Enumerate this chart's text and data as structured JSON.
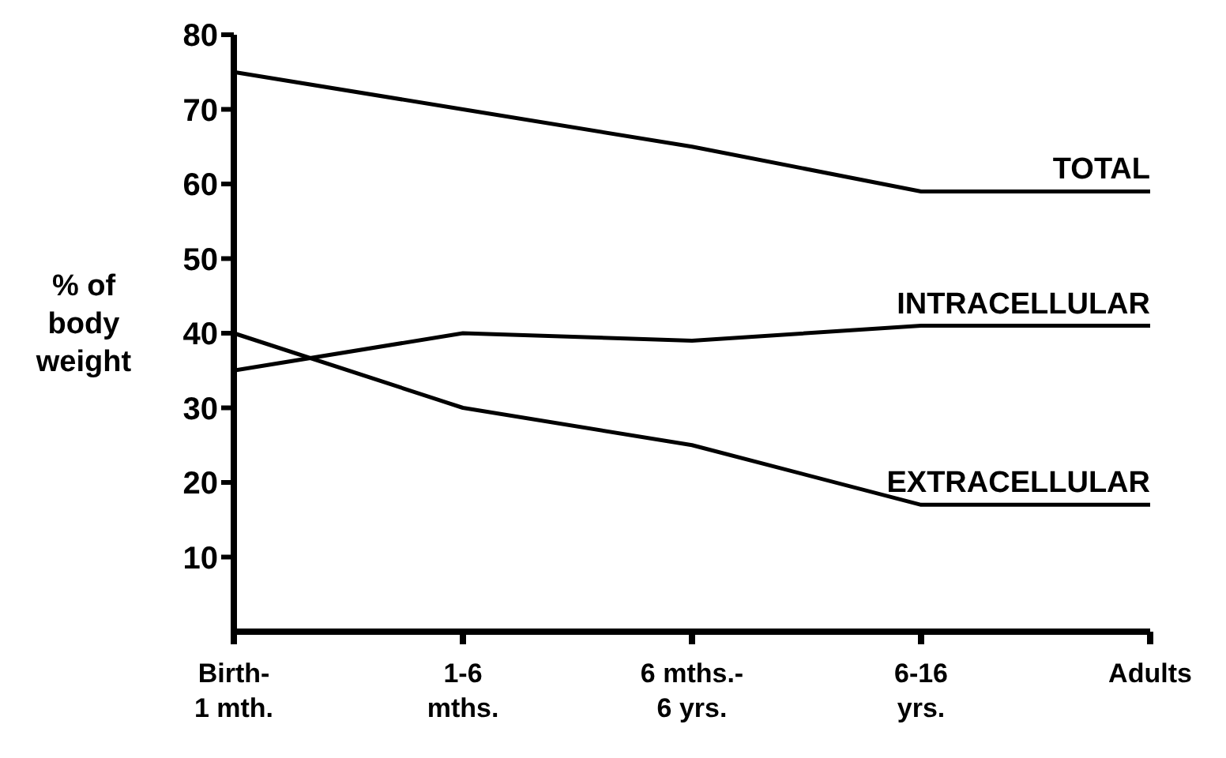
{
  "chart_data": {
    "type": "line",
    "ylabel": "% of\nbody\nweight",
    "categories": [
      "Birth-\n1 mth.",
      "1-6\nmths.",
      "6 mths.-\n6 yrs.",
      "6-16\nyrs.",
      "Adults"
    ],
    "series": [
      {
        "name": "TOTAL",
        "color": "#000000",
        "values": [
          75,
          70,
          65,
          59,
          59
        ]
      },
      {
        "name": "INTRACELLULAR",
        "color": "#000000",
        "values": [
          35,
          40,
          39,
          41,
          41
        ]
      },
      {
        "name": "EXTRACELLULAR",
        "color": "#000000",
        "values": [
          40,
          30,
          25,
          17,
          17
        ]
      }
    ],
    "ylim": [
      0,
      80
    ],
    "yticks": [
      10,
      20,
      30,
      40,
      50,
      60,
      70,
      80
    ],
    "grid": false,
    "legend": false,
    "marker": "none",
    "line_style": "solid"
  }
}
